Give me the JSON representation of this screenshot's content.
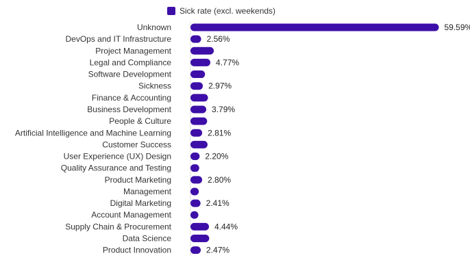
{
  "chart_data": {
    "type": "bar",
    "orientation": "horizontal",
    "legend": {
      "label": "Sick rate (excl. weekends)",
      "position": "top"
    },
    "categories": [
      "Unknown",
      "DevOps and IT Infrastructure",
      "Project Management",
      "Legal and Compliance",
      "Software Development",
      "Sickness",
      "Finance &  Accounting",
      "Business Development",
      "People & Culture",
      "Artificial Intelligence and Machine Learning",
      "Customer Success",
      "User Experience (UX) Design",
      "Quality Assurance and Testing",
      "Product Marketing",
      "Management",
      "Digital Marketing",
      "Account Management",
      "Supply Chain &  Procurement",
      "Data Science",
      "Product Innovation"
    ],
    "values": [
      59.59,
      2.56,
      5.6,
      4.77,
      3.5,
      2.97,
      4.2,
      3.79,
      4.0,
      2.81,
      4.1,
      2.2,
      2.1,
      2.8,
      2.0,
      2.41,
      1.9,
      4.44,
      4.5,
      2.47
    ],
    "value_labels": [
      "59.59%",
      "2.56%",
      "",
      "4.77%",
      "",
      "2.97%",
      "",
      "3.79%",
      "",
      "2.81%",
      "",
      "2.20%",
      "",
      "2.80%",
      "",
      "2.41%",
      "",
      "4.44%",
      "",
      "2.47%"
    ],
    "xlim": [
      0,
      60
    ],
    "colors": {
      "bar": "#3d0fa8",
      "baseline": "#dddddd"
    }
  }
}
